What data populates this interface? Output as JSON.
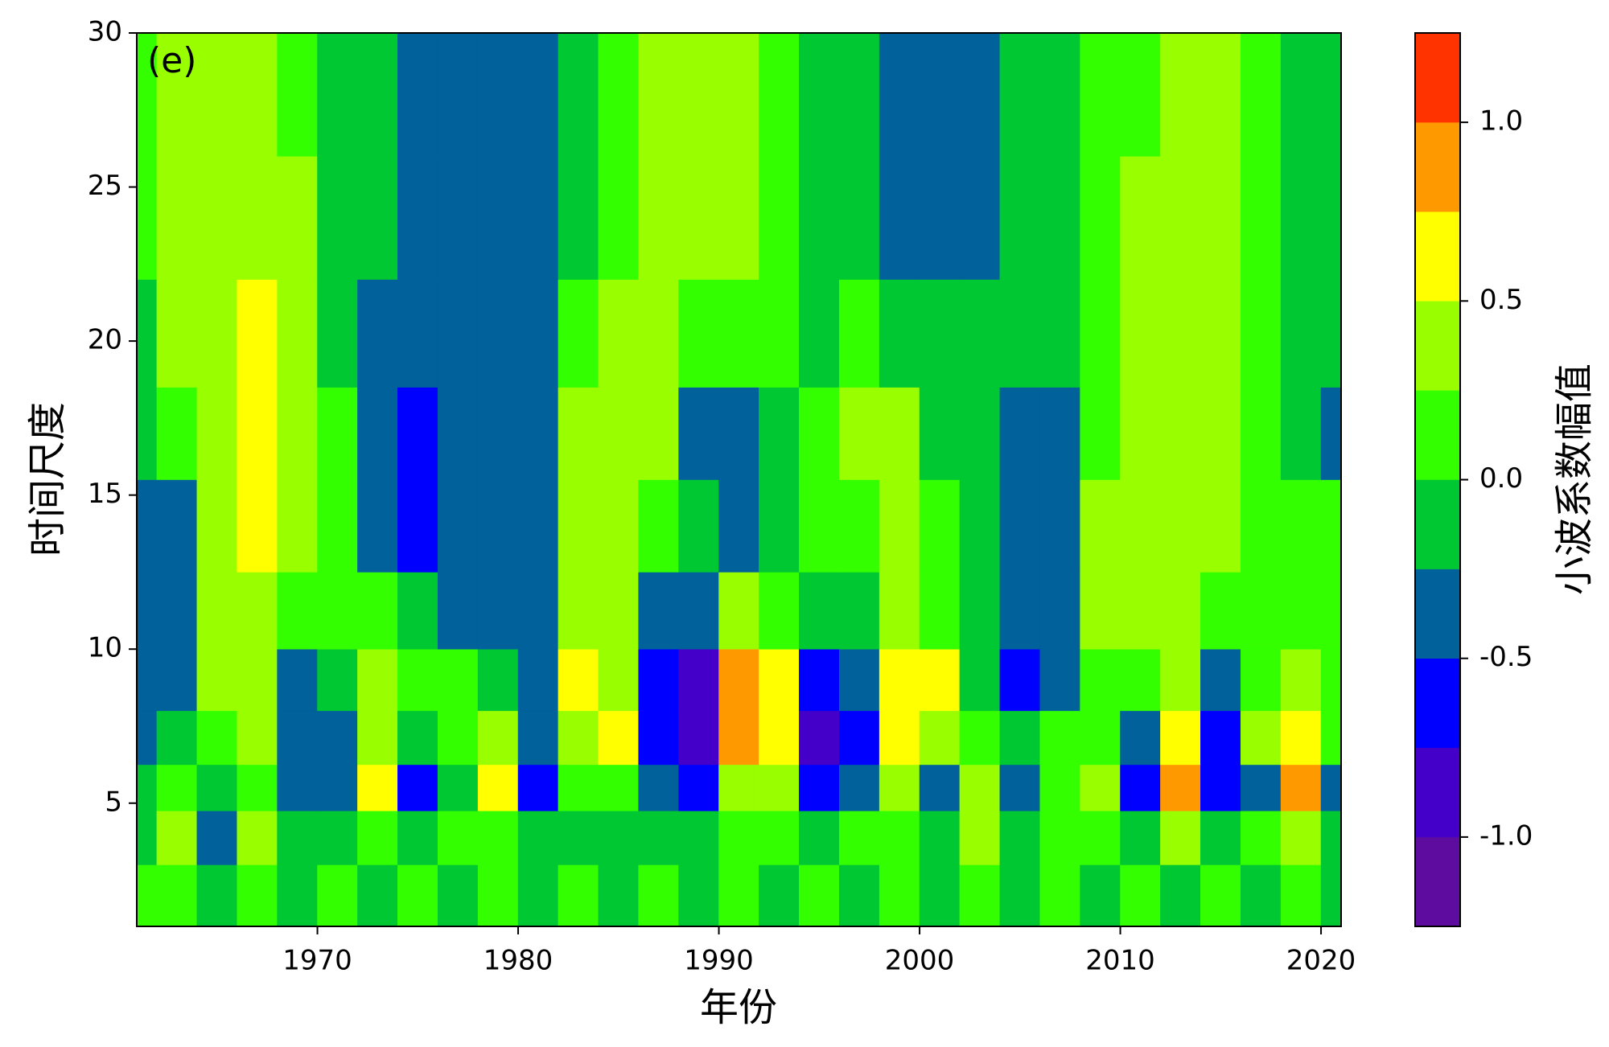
{
  "chart_data": {
    "type": "contourf",
    "title": "(e)",
    "x_label": "年份",
    "y_label": "时间尺度",
    "colorbar_label": "小波系数幅值",
    "xlim": [
      1961,
      2021
    ],
    "ylim": [
      1,
      30
    ],
    "xticks": [
      1970,
      1980,
      1990,
      2000,
      2010,
      2020
    ],
    "yticks": [
      5,
      10,
      15,
      20,
      25,
      30
    ],
    "levels": [
      -1.25,
      -1.0,
      -0.75,
      -0.5,
      -0.25,
      0,
      0.25,
      0.5,
      0.75,
      1.0,
      1.25
    ],
    "colors": [
      "#5e0ca0",
      "#4400c8",
      "#0000ff",
      "#00619b",
      "#00c832",
      "#33ff00",
      "#99ff00",
      "#ffff00",
      "#ff9900",
      "#ff3300"
    ],
    "cticks": [
      {
        "value": -1,
        "label": "-1.0"
      },
      -0.5,
      {
        "value": 0,
        "label": "0.0"
      },
      0.5,
      {
        "value": 1,
        "label": "1.0"
      }
    ],
    "x": [
      1961,
      1963,
      1965,
      1967,
      1969,
      1971,
      1973,
      1975,
      1977,
      1979,
      1981,
      1983,
      1985,
      1987,
      1989,
      1991,
      1993,
      1995,
      1997,
      1999,
      2001,
      2003,
      2005,
      2007,
      2009,
      2011,
      2013,
      2015,
      2017,
      2019,
      2021
    ],
    "y": [
      2,
      4,
      5.5,
      7,
      9,
      11,
      14,
      17,
      20,
      24,
      28
    ],
    "z": [
      [
        0.1,
        0.1,
        -0.1,
        0.1,
        -0.1,
        0.1,
        -0.1,
        0.1,
        -0.1,
        0.1,
        -0.1,
        0.1,
        -0.1,
        0.1,
        -0.1,
        0.1,
        -0.1,
        0.1,
        -0.1,
        0.1,
        -0.1,
        0.1,
        -0.1,
        0.1,
        -0.1,
        0.1,
        -0.1,
        0.1,
        -0.1,
        0.1,
        -0.1
      ],
      [
        -0.1,
        0.4,
        -0.4,
        0.4,
        -0.1,
        -0.1,
        0.1,
        -0.1,
        0.1,
        0.1,
        -0.1,
        -0.1,
        -0.1,
        -0.1,
        -0.1,
        0.1,
        0.1,
        -0.1,
        0.1,
        0.1,
        -0.1,
        0.4,
        -0.1,
        0.1,
        0.1,
        -0.1,
        0.4,
        -0.1,
        0.1,
        0.4,
        -0.1
      ],
      [
        -0.1,
        0.1,
        -0.1,
        0.1,
        -0.4,
        -0.4,
        0.6,
        -0.6,
        -0.1,
        0.6,
        -0.6,
        0.1,
        0.1,
        -0.4,
        -0.6,
        0.4,
        0.4,
        -0.6,
        -0.4,
        0.4,
        -0.4,
        0.4,
        -0.4,
        0.1,
        0.4,
        -0.6,
        0.9,
        -0.6,
        -0.4,
        0.9,
        -0.4
      ],
      [
        -0.4,
        -0.1,
        0.1,
        0.4,
        -0.4,
        -0.4,
        0.4,
        -0.1,
        0.1,
        0.4,
        -0.4,
        0.4,
        0.6,
        -0.6,
        -0.9,
        0.9,
        0.6,
        -0.9,
        -0.6,
        0.6,
        0.4,
        0.1,
        -0.1,
        0.1,
        0.1,
        -0.4,
        0.6,
        -0.6,
        0.4,
        0.6,
        0.1
      ],
      [
        -0.4,
        -0.4,
        0.4,
        0.4,
        -0.4,
        -0.1,
        0.4,
        0.1,
        0.1,
        -0.1,
        -0.4,
        0.6,
        0.4,
        -0.6,
        -0.9,
        0.9,
        0.6,
        -0.6,
        -0.4,
        0.6,
        0.6,
        -0.1,
        -0.6,
        -0.4,
        0.1,
        0.1,
        0.4,
        -0.4,
        0.1,
        0.4,
        0.1
      ],
      [
        -0.4,
        -0.4,
        0.4,
        0.4,
        0.1,
        0.1,
        0.1,
        -0.1,
        -0.4,
        -0.4,
        -0.4,
        0.4,
        0.4,
        -0.4,
        -0.4,
        0.4,
        0.1,
        -0.1,
        -0.1,
        0.4,
        0.1,
        -0.1,
        -0.4,
        -0.4,
        0.4,
        0.4,
        0.4,
        0.1,
        0.1,
        0.1,
        0.1
      ],
      [
        -0.4,
        -0.4,
        0.4,
        0.6,
        0.4,
        0.1,
        -0.4,
        -0.6,
        -0.4,
        -0.4,
        -0.4,
        0.4,
        0.4,
        0.1,
        -0.1,
        -0.4,
        -0.1,
        0.1,
        0.1,
        0.4,
        0.1,
        -0.1,
        -0.4,
        -0.4,
        0.4,
        0.4,
        0.4,
        0.4,
        0.1,
        0.1,
        0.1
      ],
      [
        -0.1,
        0.1,
        0.4,
        0.6,
        0.4,
        0.1,
        -0.4,
        -0.6,
        -0.4,
        -0.4,
        -0.4,
        0.4,
        0.4,
        0.4,
        -0.4,
        -0.4,
        -0.1,
        0.1,
        0.4,
        0.4,
        -0.1,
        -0.1,
        -0.4,
        -0.4,
        0.1,
        0.4,
        0.4,
        0.4,
        0.1,
        -0.1,
        -0.4
      ],
      [
        -0.1,
        0.4,
        0.4,
        0.6,
        0.4,
        -0.1,
        -0.4,
        -0.4,
        -0.4,
        -0.4,
        -0.4,
        0.1,
        0.4,
        0.4,
        0.1,
        0.1,
        0.1,
        -0.1,
        0.1,
        -0.1,
        -0.1,
        -0.1,
        -0.1,
        -0.1,
        0.1,
        0.4,
        0.4,
        0.4,
        0.1,
        -0.1,
        -0.1
      ],
      [
        0.1,
        0.4,
        0.4,
        0.4,
        0.4,
        -0.1,
        -0.1,
        -0.4,
        -0.4,
        -0.4,
        -0.4,
        -0.1,
        0.1,
        0.4,
        0.4,
        0.4,
        0.1,
        -0.1,
        -0.1,
        -0.4,
        -0.4,
        -0.4,
        -0.1,
        -0.1,
        0.1,
        0.4,
        0.4,
        0.4,
        0.1,
        -0.1,
        -0.1
      ],
      [
        0.1,
        0.4,
        0.4,
        0.4,
        0.1,
        -0.1,
        -0.1,
        -0.4,
        -0.4,
        -0.4,
        -0.4,
        -0.1,
        0.1,
        0.4,
        0.4,
        0.4,
        0.1,
        -0.1,
        -0.1,
        -0.4,
        -0.4,
        -0.4,
        -0.1,
        -0.1,
        0.1,
        0.1,
        0.4,
        0.4,
        0.1,
        -0.1,
        -0.1
      ]
    ]
  }
}
